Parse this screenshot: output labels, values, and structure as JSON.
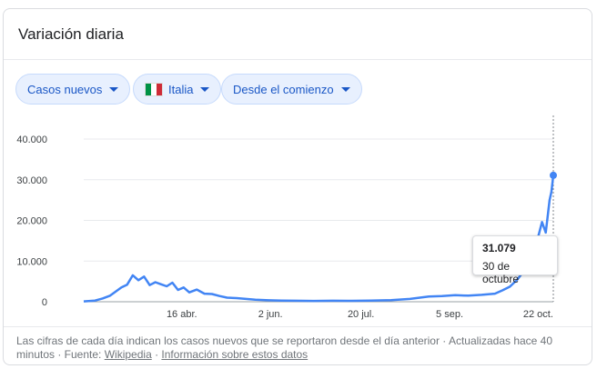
{
  "header": {
    "title": "Variación diaria"
  },
  "filters": {
    "metric_label": "Casos nuevos",
    "country_label": "Italia",
    "country_flag_colors": [
      "#009246",
      "#ffffff",
      "#ce2b37"
    ],
    "range_label": "Desde el comienzo"
  },
  "tooltip": {
    "value": "31.079",
    "date": "30 de octubre"
  },
  "chart_data": {
    "type": "line",
    "title": "",
    "xlabel": "",
    "ylabel": "",
    "ylim": [
      0,
      40000
    ],
    "y_ticks": [
      "0",
      "10.000",
      "20.000",
      "30.000",
      "40.000"
    ],
    "y_tick_values": [
      0,
      10000,
      20000,
      30000,
      40000
    ],
    "x_tick_labels": [
      "16 abr.",
      "2 jun.",
      "20 jul.",
      "5 sep.",
      "22 oct."
    ],
    "x_tick_dates": [
      "2020-04-16",
      "2020-06-02",
      "2020-07-20",
      "2020-09-05",
      "2020-10-22"
    ],
    "x_range": [
      "2020-02-24",
      "2020-10-30"
    ],
    "grid": true,
    "line_color": "#4285f4",
    "series": [
      {
        "x": [
          "2020-02-24",
          "2020-03-01",
          "2020-03-05",
          "2020-03-09",
          "2020-03-12",
          "2020-03-15",
          "2020-03-18",
          "2020-03-21",
          "2020-03-24",
          "2020-03-27",
          "2020-03-30",
          "2020-04-02",
          "2020-04-05",
          "2020-04-08",
          "2020-04-11",
          "2020-04-14",
          "2020-04-17",
          "2020-04-20",
          "2020-04-24",
          "2020-04-28",
          "2020-05-02",
          "2020-05-06",
          "2020-05-10",
          "2020-05-15",
          "2020-05-20",
          "2020-05-25",
          "2020-06-01",
          "2020-06-08",
          "2020-06-15",
          "2020-06-25",
          "2020-07-05",
          "2020-07-15",
          "2020-07-25",
          "2020-08-05",
          "2020-08-15",
          "2020-08-25",
          "2020-09-01",
          "2020-09-08",
          "2020-09-15",
          "2020-09-22",
          "2020-09-29",
          "2020-10-03",
          "2020-10-07",
          "2020-10-11",
          "2020-10-14",
          "2020-10-17",
          "2020-10-20",
          "2020-10-22",
          "2020-10-24",
          "2020-10-26",
          "2020-10-27",
          "2020-10-28",
          "2020-10-29",
          "2020-10-30"
        ],
        "values": [
          100,
          300,
          800,
          1500,
          2500,
          3500,
          4200,
          6500,
          5300,
          6200,
          4100,
          4800,
          4300,
          3800,
          4700,
          2900,
          3500,
          2300,
          3000,
          2000,
          1900,
          1400,
          1000,
          900,
          700,
          500,
          350,
          300,
          250,
          200,
          250,
          220,
          300,
          400,
          700,
          1300,
          1400,
          1600,
          1500,
          1700,
          2000,
          2800,
          3700,
          5500,
          7300,
          10000,
          10900,
          16000,
          19600,
          17000,
          21000,
          25000,
          27000,
          31079
        ]
      }
    ]
  },
  "footer": {
    "text": "Las cifras de cada día indican los casos nuevos que se reportaron desde el día anterior · Actualizadas hace 40 minutos · Fuente: ",
    "source_link": "Wikipedia",
    "separator": " · ",
    "info_link": "Información sobre estos datos"
  }
}
